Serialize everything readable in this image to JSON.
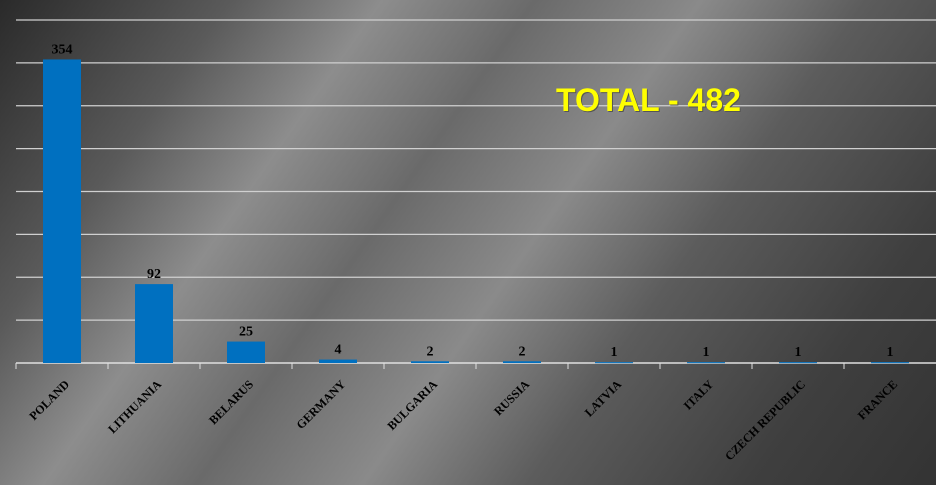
{
  "annotation": {
    "total_text": "TOTAL - 482"
  },
  "colors": {
    "bar": "#0070c0",
    "grid": "#d0d0d0",
    "total": "#ffff00",
    "text": "#000000"
  },
  "chart_data": {
    "type": "bar",
    "categories": [
      "POLAND",
      "LITHUANIA",
      "BELARUS",
      "GERMANY",
      "BULGARIA",
      "RUSSIA",
      "LATVIA",
      "ITALY",
      "CZECH REPUBLIC",
      "FRANCE"
    ],
    "values": [
      354,
      92,
      25,
      4,
      2,
      2,
      1,
      1,
      1,
      1
    ],
    "data_labels": [
      "354",
      "92",
      "25",
      "4",
      "2",
      "2",
      "1",
      "1",
      "1",
      "1"
    ],
    "title": "",
    "xlabel": "",
    "ylabel": "",
    "ylim": [
      0,
      400
    ],
    "grid": true,
    "legend": "none"
  }
}
